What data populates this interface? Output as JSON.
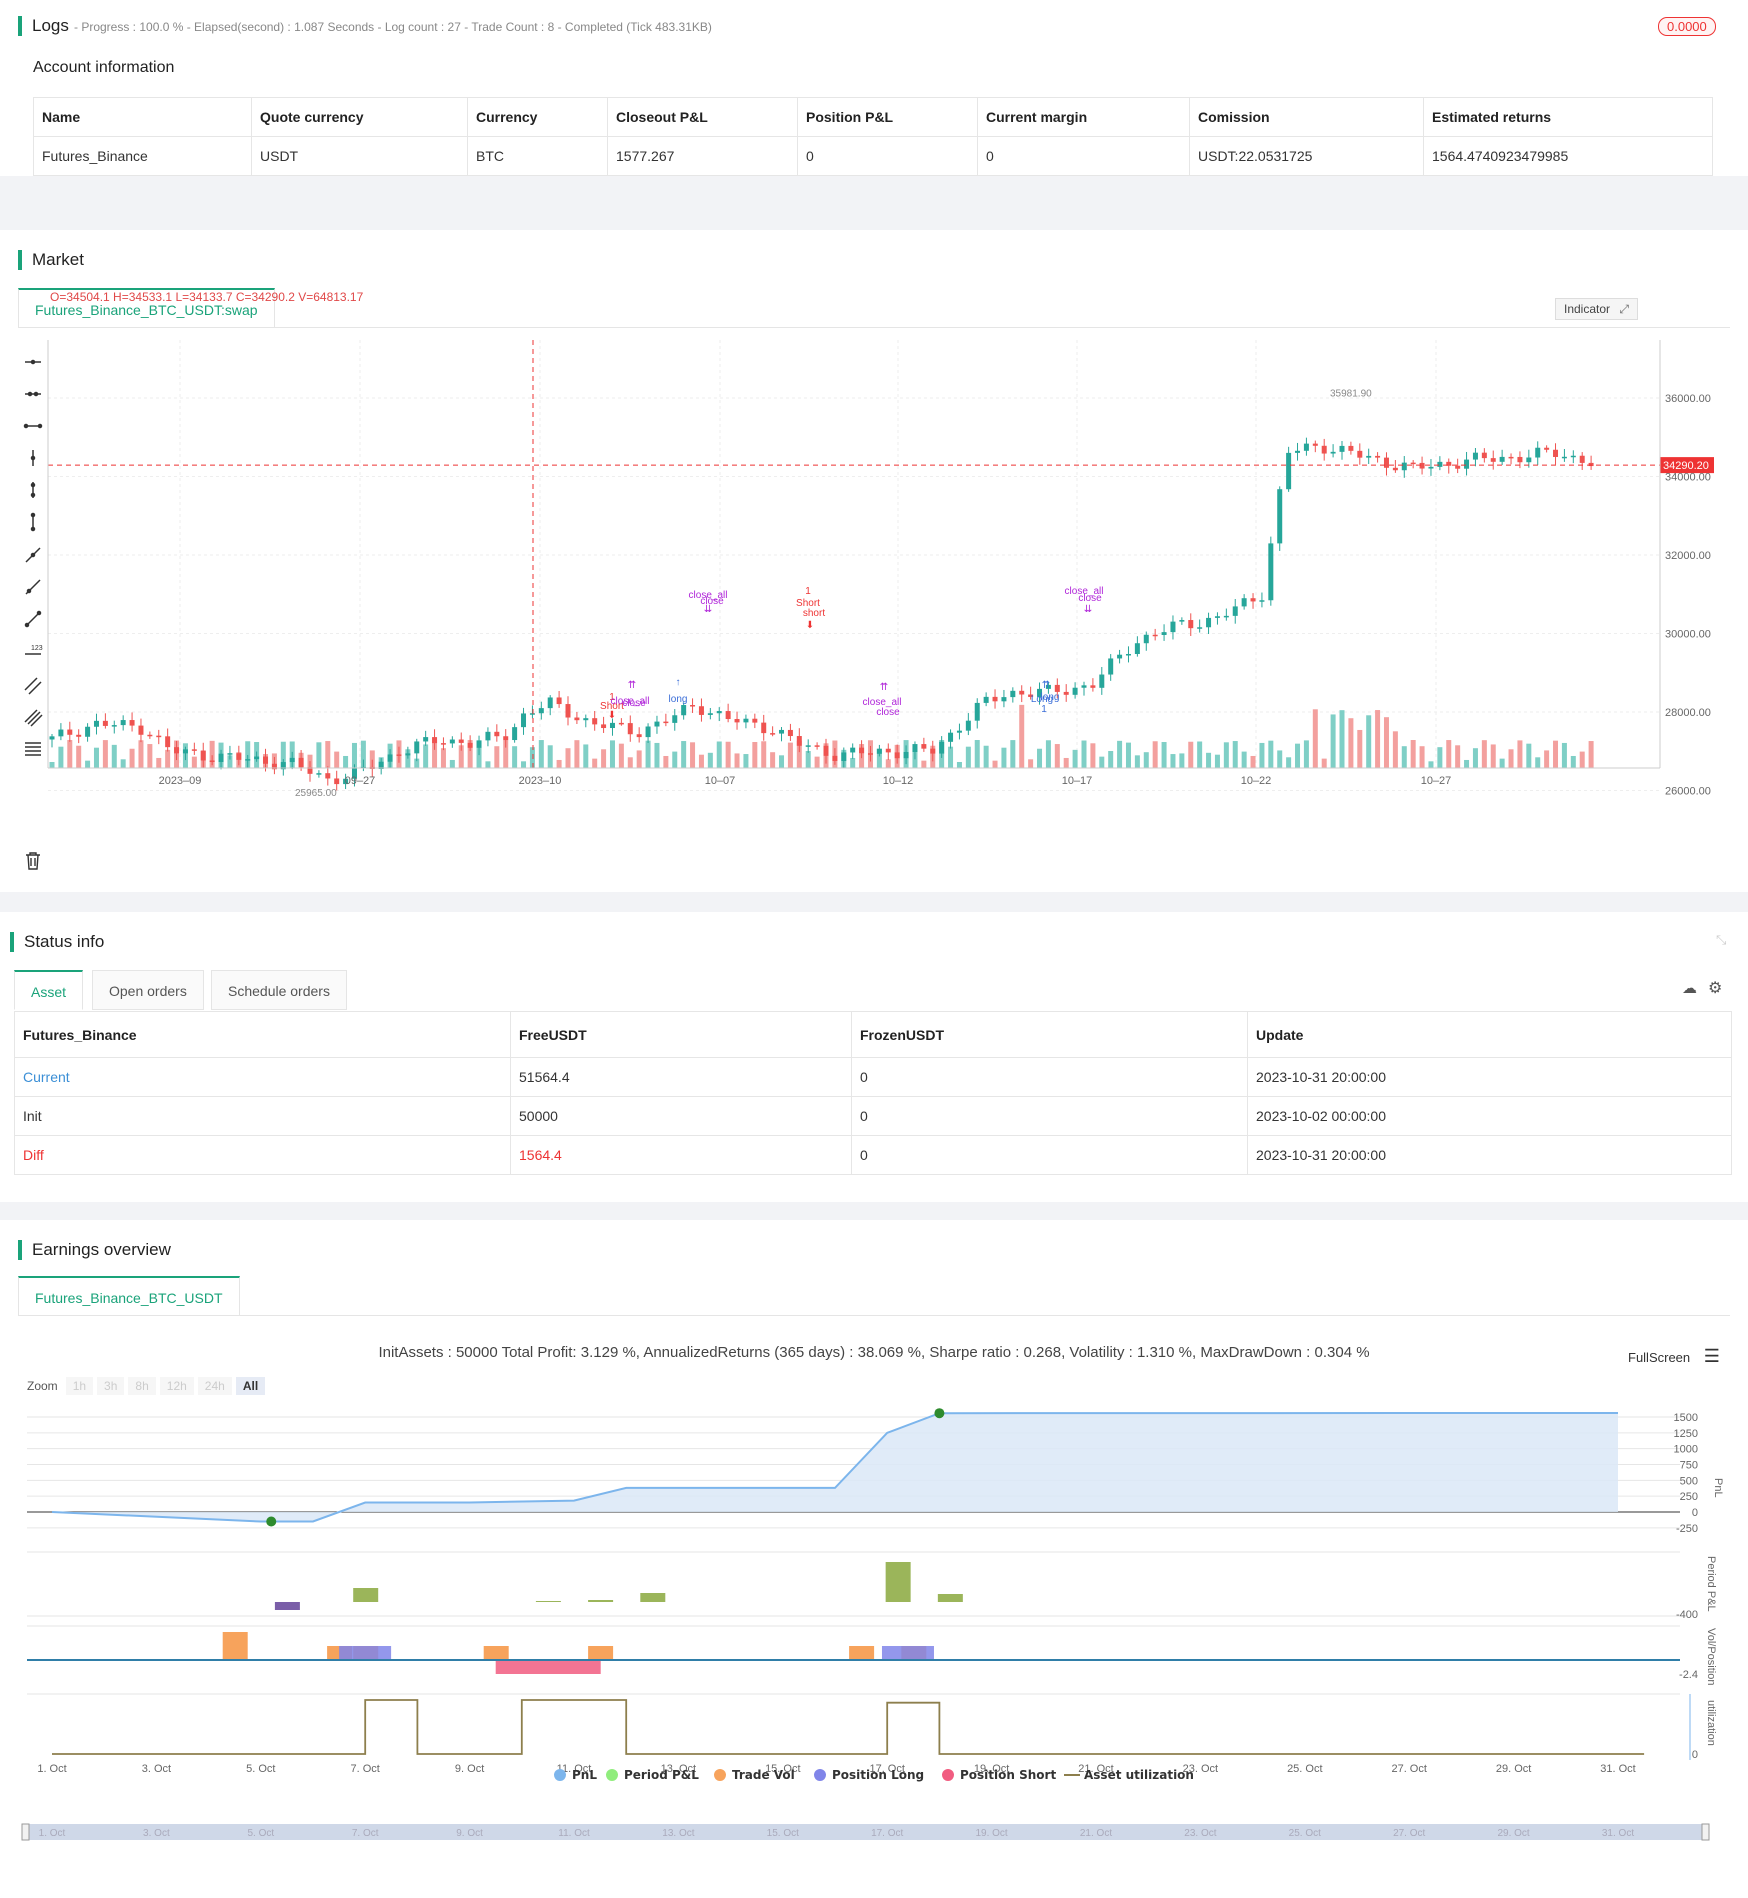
{
  "logs": {
    "title": "Logs",
    "summary": "- Progress : 100.0 % - Elapsed(second) : 1.087  Seconds - Log count : 27 - Trade Count : 8 - Completed (Tick 483.31KB)",
    "badge": "0.0000",
    "account_title": "Account information",
    "columns": [
      "Name",
      "Quote currency",
      "Currency",
      "Closeout P&L",
      "Position P&L",
      "Current margin",
      "Comission",
      "Estimated returns"
    ],
    "row": [
      "Futures_Binance",
      "USDT",
      "BTC",
      "1577.267",
      "0",
      "0",
      "USDT:22.0531725",
      "1564.4740923479985"
    ]
  },
  "market": {
    "title": "Market",
    "tab": "Futures_Binance_BTC_USDT:swap",
    "ohlc": "O=34504.1 H=34533.1 L=34133.7 C=34290.2 V=64813.17",
    "indicator_label": "Indicator",
    "price_ticks": [
      "36000.00",
      "34000.00",
      "32000.00",
      "30000.00",
      "28000.00",
      "26000.00"
    ],
    "last_price": "34290.20",
    "date_ticks": [
      "2023–09",
      "09–27",
      "2023–10",
      "10–07",
      "10–12",
      "10–17",
      "10–22",
      "10–27"
    ],
    "high_label": "35981.90",
    "low_label": "25965.00",
    "annotations": {
      "short1": "Short",
      "short1_n": "1",
      "closeall1": "close_all",
      "close1": "close",
      "long1": "long",
      "closeall2": "close_all",
      "close2": "close",
      "short2": "Short",
      "short2_n": "1",
      "short2b": "short",
      "closeall3": "close_all",
      "close3": "close",
      "closeall4": "close_all",
      "close4": "close",
      "long2": "Long",
      "long2_n": "1",
      "long2b": "long"
    }
  },
  "status": {
    "title": "Status info",
    "tabs": [
      "Asset",
      "Open orders",
      "Schedule orders"
    ],
    "columns": [
      "Futures_Binance",
      "FreeUSDT",
      "FrozenUSDT",
      "Update"
    ],
    "rows": [
      [
        "Current",
        "51564.4",
        "0",
        "2023-10-31 20:00:00"
      ],
      [
        "Init",
        "50000",
        "0",
        "2023-10-02 00:00:00"
      ],
      [
        "Diff",
        "1564.4",
        "0",
        "2023-10-31 20:00:00"
      ]
    ]
  },
  "earnings": {
    "title": "Earnings overview",
    "tab": "Futures_Binance_BTC_USDT",
    "summary": "InitAssets : 50000 Total Profit: 3.129 %, AnnualizedReturns (365 days) : 38.069 %, Sharpe ratio : 0.268, Volatility : 1.310 %, MaxDrawDown : 0.304 %",
    "fullscreen": "FullScreen",
    "zoom_label": "Zoom",
    "zoom_buttons": [
      "1h",
      "3h",
      "8h",
      "12h",
      "24h",
      "All"
    ],
    "pnl_ticks": [
      "1500",
      "1250",
      "1000",
      "750",
      "500",
      "250",
      "0",
      "-250"
    ],
    "period_tick": "-400",
    "vol_tick": "-2.4",
    "util_tick": "0",
    "axis_titles": [
      "PnL",
      "Period P&L",
      "Vol/Position",
      "utilization"
    ],
    "date_ticks": [
      "1. Oct",
      "3. Oct",
      "5. Oct",
      "7. Oct",
      "9. Oct",
      "11. Oct",
      "13. Oct",
      "15. Oct",
      "17. Oct",
      "19. Oct",
      "21. Oct",
      "23. Oct",
      "25. Oct",
      "27. Oct",
      "29. Oct",
      "31. Oct"
    ],
    "legend": [
      "PnL",
      "Period P&L",
      "Trade Vol",
      "Position Long",
      "Position Short",
      "Asset utilization"
    ],
    "colors": {
      "pnl": "#7cb5ec",
      "period": "#90ed7d",
      "vol": "#f7a35c",
      "long": "#8085e9",
      "short": "#f15c80",
      "util": "#8d7f4d"
    }
  },
  "chart_data": [
    {
      "type": "line",
      "title": "",
      "ylabel": "PnL",
      "x": [
        "1. Oct",
        "5. Oct",
        "6. Oct",
        "7. Oct",
        "9. Oct",
        "11. Oct",
        "12. Oct",
        "15. Oct",
        "16. Oct",
        "17. Oct",
        "18. Oct",
        "31. Oct"
      ],
      "series": [
        {
          "name": "PnL",
          "values": [
            0,
            -150,
            -150,
            150,
            150,
            180,
            380,
            380,
            380,
            1250,
            1560,
            1564
          ]
        }
      ],
      "ylim": [
        -250,
        1500
      ]
    }
  ]
}
